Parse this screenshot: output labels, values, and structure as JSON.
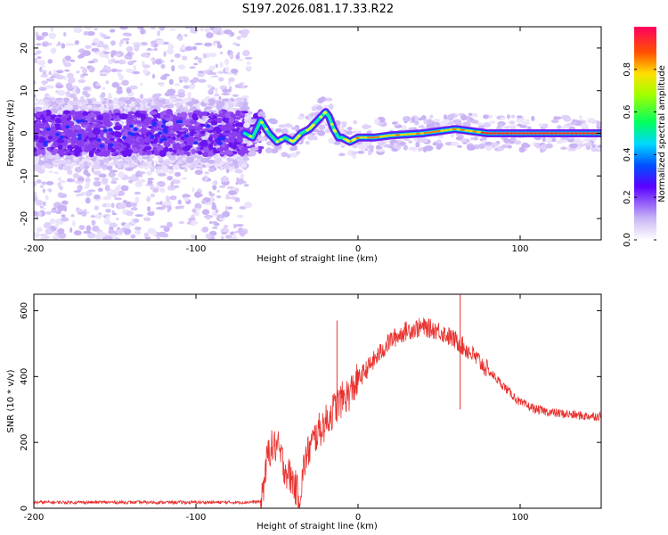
{
  "title": "S197.2026.081.17.33.R22",
  "chart_data": [
    {
      "id": "spectrogram",
      "type": "heatmap",
      "xlabel": "Height of straight line (km)",
      "ylabel": "Frequency (Hz)",
      "xlim": [
        -200,
        150
      ],
      "ylim": [
        -25,
        25
      ],
      "xticks": [
        -200,
        -100,
        0,
        100
      ],
      "yticks": [
        -20,
        -10,
        0,
        10,
        20
      ],
      "colorbar": {
        "label": "Normalized spectral amplitude",
        "range": [
          0,
          1
        ],
        "ticks": [
          "0.0",
          "0.2",
          "0.4",
          "0.6",
          "0.8"
        ]
      },
      "ridge": {
        "x": [
          -70,
          -65,
          -60,
          -55,
          -50,
          -45,
          -40,
          -35,
          -30,
          -25,
          -20,
          -18,
          -15,
          -12,
          -10,
          -5,
          0,
          10,
          20,
          40,
          50,
          60,
          70,
          80,
          100,
          150
        ],
        "y": [
          0,
          -1,
          3,
          0,
          -2,
          -1,
          -2,
          0,
          1,
          3,
          5,
          4,
          1,
          -1,
          -1,
          -2,
          -1,
          -1,
          -0.5,
          0,
          0.5,
          1,
          0.5,
          0,
          0,
          0
        ]
      }
    },
    {
      "id": "snr",
      "type": "line",
      "xlabel": "Height of straight line (km)",
      "ylabel": "SNR (10 * v/v)",
      "xlim": [
        -200,
        150
      ],
      "ylim": [
        0,
        650
      ],
      "xticks": [
        -200,
        -100,
        0,
        100
      ],
      "yticks": [
        0,
        200,
        400,
        600
      ],
      "color": "#e8312e",
      "series": [
        {
          "name": "SNR",
          "x": [
            -200,
            -150,
            -100,
            -70,
            -60,
            -58,
            -55,
            -50,
            -45,
            -40,
            -36,
            -33,
            -30,
            -25,
            -20,
            -15,
            -10,
            -5,
            0,
            10,
            20,
            30,
            40,
            50,
            60,
            70,
            80,
            90,
            100,
            110,
            120,
            130,
            140,
            150
          ],
          "y": [
            18,
            18,
            18,
            18,
            20,
            80,
            180,
            190,
            120,
            80,
            30,
            140,
            180,
            230,
            260,
            300,
            330,
            350,
            390,
            450,
            510,
            540,
            550,
            540,
            510,
            470,
            420,
            370,
            320,
            300,
            290,
            285,
            280,
            280
          ]
        }
      ],
      "spikes": [
        {
          "x": -13,
          "y": 570
        },
        {
          "x": 63,
          "y": 650
        },
        {
          "x": 63,
          "y": 300
        }
      ]
    }
  ]
}
